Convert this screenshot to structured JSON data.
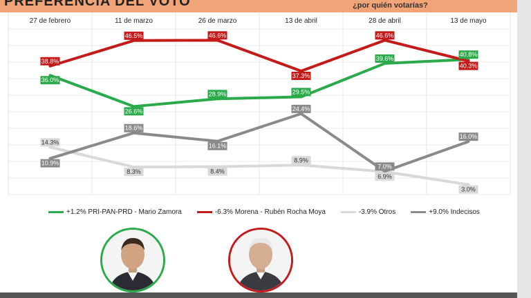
{
  "header": {
    "title": "PREFERENCIA DEL VOTO",
    "question": "¿por quién votarías?"
  },
  "colors": {
    "header_bg": "#f0a477",
    "green": "#2aaa4a",
    "red": "#c41a1a",
    "light_gray": "#d9d9d9",
    "dark_gray": "#8a8a8a"
  },
  "legend": [
    {
      "label": "+1.2% PRI-PAN-PRD - Mario Zamora",
      "color": "#2aaa4a"
    },
    {
      "label": "-6.3% Morena - Rubén Rocha Moya",
      "color": "#c41a1a"
    },
    {
      "label": "-3.9% Otros",
      "color": "#d9d9d9"
    },
    {
      "label": "+9.0% Indecisos",
      "color": "#8a8a8a"
    }
  ],
  "chart_data": {
    "type": "line",
    "title": "",
    "xlabel": "",
    "ylabel": "",
    "ylim": [
      0,
      50
    ],
    "grid": true,
    "legend_position": "bottom",
    "categories": [
      "27 de febrero",
      "11 de marzo",
      "26 de marzo",
      "13 de abril",
      "28 de abril",
      "13 de mayo"
    ],
    "series": [
      {
        "name": "+1.2% PRI-PAN-PRD - Mario Zamora",
        "color": "#2aaa4a",
        "values": [
          36.0,
          26.6,
          28.9,
          29.5,
          39.6,
          40.8
        ],
        "labels": [
          "36.0%",
          "26.6%",
          "28.9%",
          "29.5%",
          "39.6%",
          "40.8%"
        ],
        "label_side": [
          "below",
          "below",
          "above",
          "above",
          "above",
          "above"
        ]
      },
      {
        "name": "-6.3% Morena - Rubén Rocha Moya",
        "color": "#c41a1a",
        "values": [
          38.8,
          46.5,
          46.6,
          37.3,
          46.6,
          40.3
        ],
        "labels": [
          "38.8%",
          "46.5%",
          "46.6%",
          "37.3%",
          "46.6%",
          "40.3%"
        ],
        "label_side": [
          "above",
          "above",
          "above",
          "below",
          "above",
          "below"
        ]
      },
      {
        "name": "-3.9% Otros",
        "color": "#d9d9d9",
        "values": [
          14.3,
          8.3,
          8.4,
          8.9,
          6.9,
          3.0
        ],
        "labels": [
          "14.3%",
          "8.3%",
          "8.4%",
          "8.9%",
          "6.9%",
          "3.0%"
        ],
        "label_side": [
          "above",
          "below",
          "below",
          "above",
          "below",
          "below"
        ]
      },
      {
        "name": "+9.0% Indecisos",
        "color": "#8a8a8a",
        "values": [
          10.9,
          18.6,
          16.1,
          24.4,
          7.0,
          16.0
        ],
        "labels": [
          "10.9%",
          "18.6%",
          "16.1%",
          "24.4%",
          "7.0%",
          "16.0%"
        ],
        "label_side": [
          "below",
          "above",
          "below",
          "above",
          "above",
          "above"
        ]
      }
    ]
  }
}
